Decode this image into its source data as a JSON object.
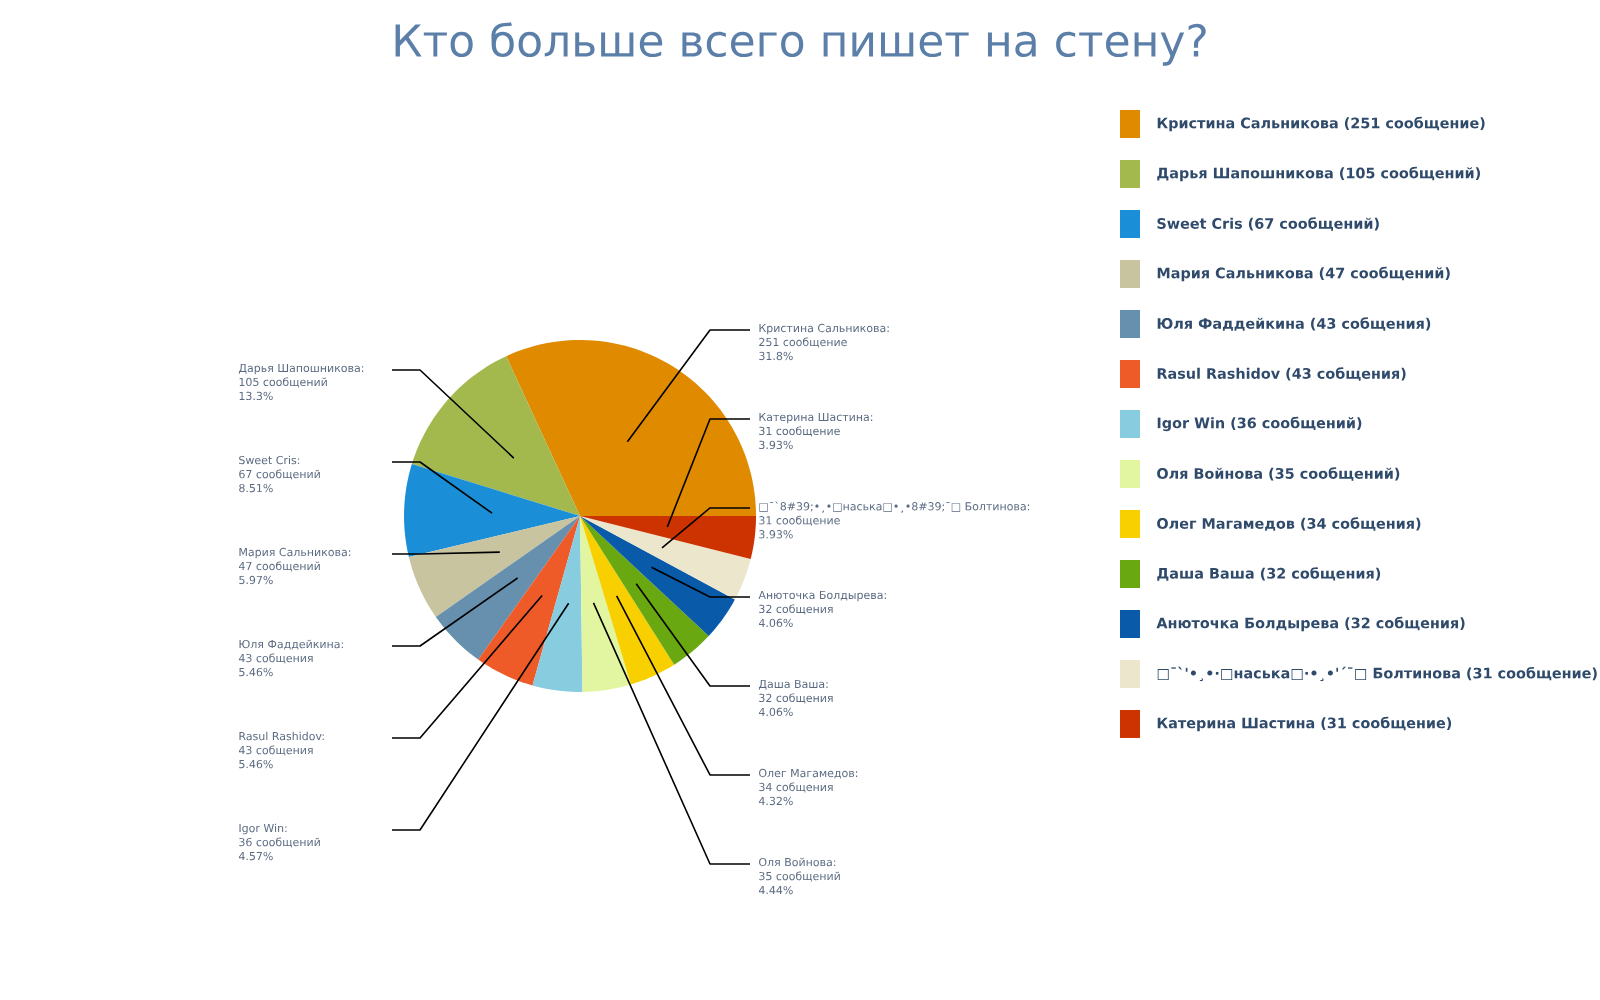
{
  "chart_data": {
    "type": "pie",
    "title": "Кто больше всего пишет на стену?",
    "categories": [
      "Кристина Сальникова (251 сообщение)",
      "Дарья Шапошникова (105 сообщений)",
      "Sweet Cris (67 сообщений)",
      "Мария Сальникова (47 сообщений)",
      "Юля Фаддейкина (43 собщения)",
      "Rasul Rashidov (43 собщения)",
      "Igor Win (36 сообщений)",
      "Оля Войнова (35 сообщений)",
      "Олег Магамедов (34 собщения)",
      "Даша Ваша (32 собщения)",
      "Анюточка Болдырева (32 собщения)",
      "□¯`'•¸•·□наська□·•¸•'´¯□ Болтинова (31 сообщение)",
      "Катерина Шастина (31 сообщение)"
    ],
    "values": [
      251,
      105,
      67,
      47,
      43,
      43,
      36,
      35,
      34,
      32,
      32,
      31,
      31
    ],
    "colors": [
      "#e08a00",
      "#a3b94e",
      "#1a8fd8",
      "#c8c4a0",
      "#6690ae",
      "#ee5a28",
      "#88cce0",
      "#e2f5a0",
      "#f8d000",
      "#6aa812",
      "#0a5aaa",
      "#ebe6cc",
      "#cc3300"
    ],
    "annotations": [
      "Кристина Сальникова:",
      "251 сообщение",
      "31.8%",
      "Дарья Шапошникова:",
      "105 сообщений",
      "13.3%",
      "Sweet Cris:",
      "67 сообщений",
      "8.51%",
      "Мария Сальникова:",
      "47 сообщений",
      "5.97%",
      "Юля Фаддейкина:",
      "43 собщения",
      "5.46%",
      "Rasul Rashidov:",
      "43 собщения",
      "5.46%",
      "Igor Win:",
      "36 сообщений",
      "4.57%",
      "Оля Войнова:",
      "35 сообщений",
      "4.44%",
      "Олег Магамедов:",
      "34 собщения",
      "4.32%",
      "Даша Ваша:",
      "32 собщения",
      "4.06%",
      "Анюточка Болдырева:",
      "32 собщения",
      "4.06%",
      "□¯`8#39;•¸•□наська□•¸•8#39;¯□ Болтинова:",
      "31 сообщение",
      "3.93%",
      "Катерина Шастина:",
      "31 сообщение",
      "3.93%"
    ],
    "legend": "right"
  }
}
